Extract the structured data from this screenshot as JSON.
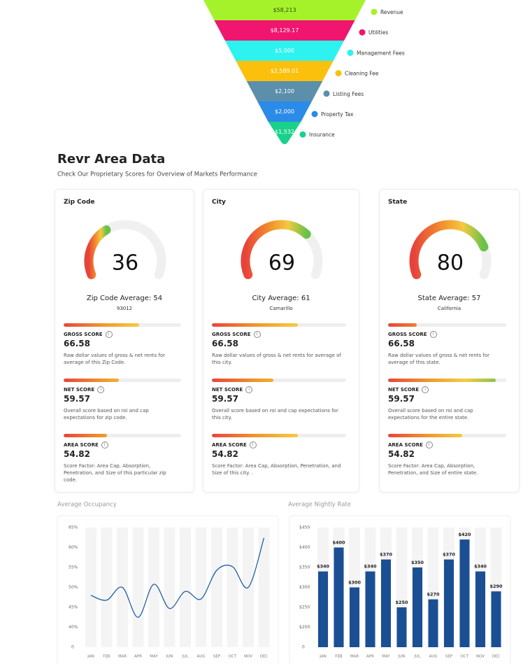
{
  "chart_data": [
    {
      "type": "funnel",
      "categories": [
        "Revenue",
        "Utilities",
        "Management Fees",
        "Cleaning Fee",
        "Listing Fees",
        "Property Tax",
        "Insurance"
      ],
      "values": [
        58213,
        8129.17,
        5000,
        2589.01,
        2100,
        2000,
        1532
      ],
      "value_labels": [
        "$58,213",
        "$8,129.17",
        "$5,000",
        "$2,589.01",
        "$2,100",
        "$2,000",
        "$1,532"
      ],
      "colors": [
        "#a6f22a",
        "#f0156f",
        "#2ef2f0",
        "#fbc00c",
        "#5b8fab",
        "#2b8be8",
        "#19d18b"
      ]
    },
    {
      "type": "line",
      "title": "Average Occupancy",
      "categories": [
        "JAN",
        "FEB",
        "MAR",
        "APR",
        "MAY",
        "JUN",
        "JUL",
        "AUG",
        "SEP",
        "OCT",
        "NOV",
        "DEC"
      ],
      "values": [
        48,
        46.8,
        50,
        42.5,
        50.8,
        44.7,
        49,
        47.1,
        54.3,
        55.2,
        50,
        62.4
      ],
      "color": "#1f5fa6",
      "ylim": [
        35,
        65
      ],
      "yticks": [
        {
          "value": 40,
          "label": "40%"
        },
        {
          "value": 45,
          "label": "45%"
        },
        {
          "value": 50,
          "label": "50%"
        },
        {
          "value": 55,
          "label": "55%"
        },
        {
          "value": 60,
          "label": "60%"
        },
        {
          "value": 65,
          "label": "65%"
        }
      ],
      "y_origin_label": "0"
    },
    {
      "type": "bar",
      "title": "Average Nightly Rate",
      "categories": [
        "JAN",
        "FEB",
        "MAR",
        "APR",
        "MAY",
        "JUN",
        "JUL",
        "AUG",
        "SEP",
        "OCT",
        "NOV",
        "DEC"
      ],
      "values": [
        340,
        400,
        300,
        340,
        370,
        250,
        350,
        270,
        370,
        420,
        340,
        290
      ],
      "value_labels": [
        "$340",
        "$400",
        "$300",
        "$340",
        "$370",
        "$250",
        "$350",
        "$270",
        "$370",
        "$420",
        "$340",
        "$290"
      ],
      "color": "#1b4f94",
      "ylim": [
        150,
        450
      ],
      "yticks": [
        {
          "value": 200,
          "label": "$200"
        },
        {
          "value": 250,
          "label": "$250"
        },
        {
          "value": 300,
          "label": "$300"
        },
        {
          "value": 350,
          "label": "$350"
        },
        {
          "value": 400,
          "label": "$400"
        },
        {
          "value": 450,
          "label": "$450"
        }
      ],
      "y_origin_label": "0"
    }
  ],
  "header": {
    "title": "Revr Area Data",
    "subtitle": "Check Our Proprietary Scores for Overview of Markets Performance"
  },
  "gauge_range": [
    0,
    100
  ],
  "cards": [
    {
      "title": "Zip Code",
      "score": 36,
      "average": "Zip Code Average: 54",
      "location": "93012",
      "scores": [
        {
          "label": "GROSS SCORE",
          "value": 66.58,
          "bar": 64,
          "description": "Raw dollar values of gross & net rents for average of this Zip Code."
        },
        {
          "label": "NET SCORE",
          "value": 59.57,
          "bar": 47,
          "description": "Overall score based on roi and cap expectations for zip code."
        },
        {
          "label": "AREA SCORE",
          "value": 54.82,
          "bar": 37,
          "description": "Score Factor: Area Cap, Absorption, Penetration, and Size of this particular zip code."
        }
      ]
    },
    {
      "title": "City",
      "score": 69,
      "average": "City Average: 61",
      "location": "Camarillo",
      "scores": [
        {
          "label": "GROSS SCORE",
          "value": 66.58,
          "bar": 64,
          "description": "Raw dollar values of gross & net rents for average of this city."
        },
        {
          "label": "NET SCORE",
          "value": 59.57,
          "bar": 46,
          "description": "Overall score based on roi and cap expectations for this city."
        },
        {
          "label": "AREA SCORE",
          "value": 54.82,
          "bar": 64,
          "description": "Score Factor: Area Cap, Absorption, Penetration, and Size of this city. ."
        }
      ]
    },
    {
      "title": "State",
      "score": 80,
      "average": "State Average: 57",
      "location": "California",
      "scores": [
        {
          "label": "GROSS SCORE",
          "value": 66.58,
          "bar": 24,
          "description": "Raw dollar values of gross & net rents for average of this state."
        },
        {
          "label": "NET SCORE",
          "value": 59.57,
          "bar": 91,
          "description": "Overall score based on roi and cap expectations for the entire state."
        },
        {
          "label": "AREA SCORE",
          "value": 54.82,
          "bar": 63,
          "description": "Score Factor: Area Cap, Absorption, Penetration, and Size of entire state."
        }
      ]
    }
  ]
}
